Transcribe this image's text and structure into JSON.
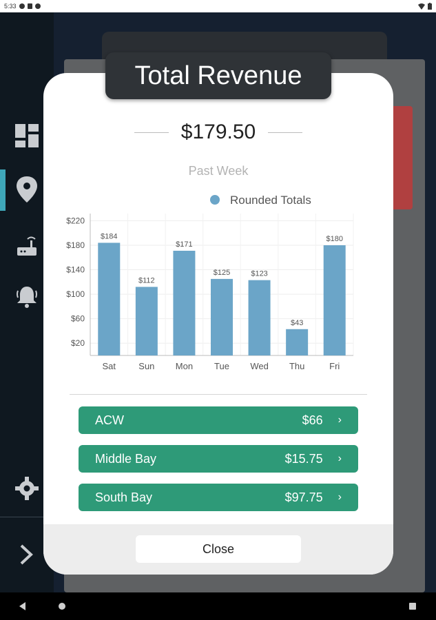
{
  "status_bar": {
    "time": "5:33"
  },
  "modal": {
    "title": "Total Revenue",
    "total_amount": "$179.50",
    "period": "Past Week",
    "close_label": "Close"
  },
  "chart_data": {
    "type": "bar",
    "legend": "Rounded Totals",
    "legend_position": "top-center",
    "categories": [
      "Sat",
      "Sun",
      "Mon",
      "Tue",
      "Wed",
      "Thu",
      "Fri"
    ],
    "values": [
      184,
      112,
      171,
      125,
      123,
      43,
      180
    ],
    "data_labels": [
      "$184",
      "$112",
      "$171",
      "$125",
      "$123",
      "$43",
      "$180"
    ],
    "y_ticks": [
      20,
      60,
      100,
      140,
      180,
      220
    ],
    "y_tick_labels": [
      "$20",
      "$60",
      "$100",
      "$140",
      "$180",
      "$220"
    ],
    "ylim": [
      0,
      225
    ],
    "grid": true,
    "bar_color": "#6ba5c8"
  },
  "bays": [
    {
      "name": "ACW",
      "amount": "$66"
    },
    {
      "name": "Middle Bay",
      "amount": "$15.75"
    },
    {
      "name": "South Bay",
      "amount": "$97.75"
    }
  ],
  "colors": {
    "bay_button": "#2e9a78",
    "title_bg": "#2f3337",
    "sidebar_active": "#3fa7b9"
  },
  "icons": {
    "sidebar": [
      "dashboard-icon",
      "location-pin-icon",
      "router-icon",
      "bell-icon",
      "gear-icon",
      "chevron-right-icon"
    ]
  }
}
